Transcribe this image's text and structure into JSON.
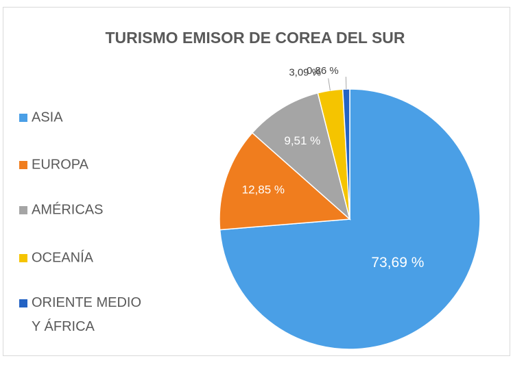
{
  "chart_data": {
    "type": "pie",
    "title": "TURISMO EMISOR DE COREA DEL SUR",
    "categories": [
      "ASIA",
      "EUROPA",
      "AMÉRICAS",
      "OCEANÍA",
      "ORIENTE MEDIO Y ÁFRICA"
    ],
    "values": [
      73.69,
      12.85,
      9.51,
      3.09,
      0.86
    ],
    "value_labels": [
      "73,69 %",
      "12,85 %",
      "9,51 %",
      "3,09 %",
      "0,86 %"
    ],
    "colors": [
      "#4a9fe6",
      "#f07d1e",
      "#a5a5a5",
      "#f5c400",
      "#2463c4"
    ],
    "legend": "left"
  }
}
